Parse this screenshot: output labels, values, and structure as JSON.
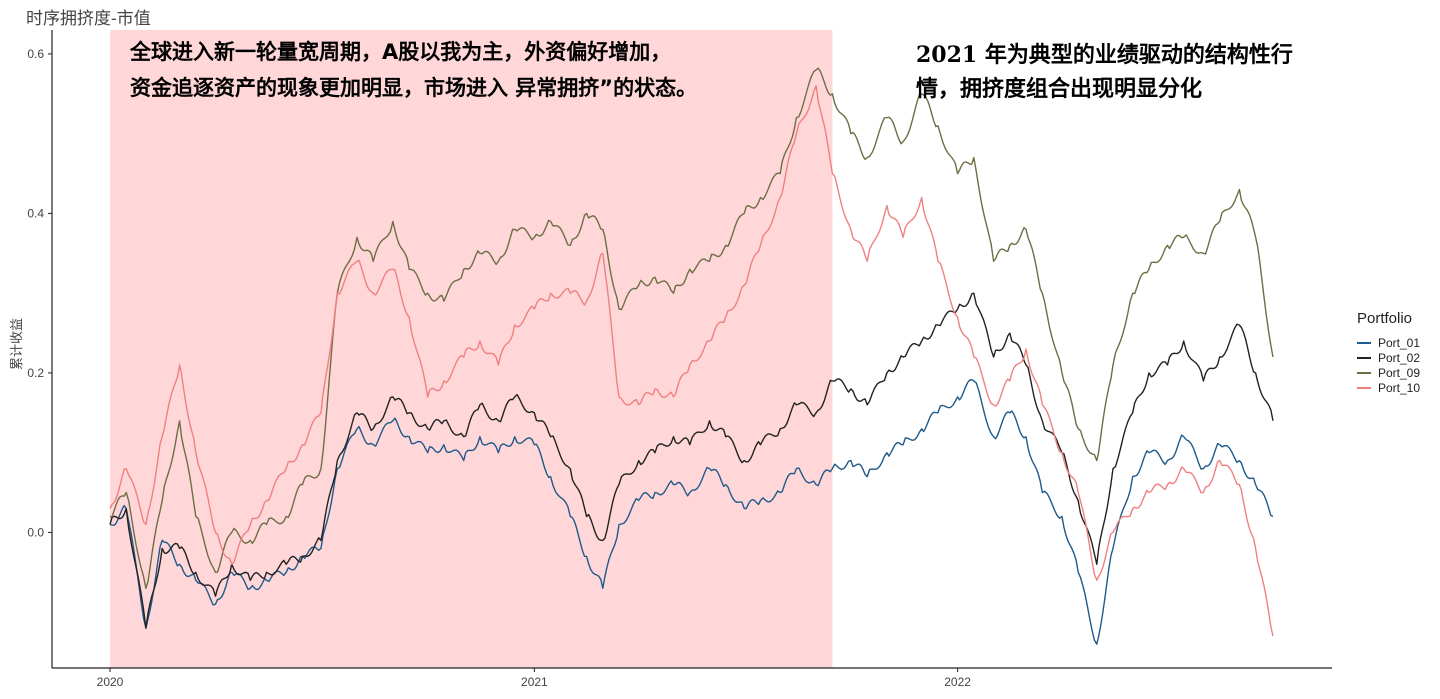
{
  "chart_data": {
    "type": "line",
    "title": "时序拥挤度-市值",
    "ylabel": "累计收益",
    "xlabel": "",
    "x_ticks": [
      "2020",
      "2021",
      "2022"
    ],
    "y_ticks": [
      "0.0",
      "0.2",
      "0.4",
      "0.6"
    ],
    "ylim": [
      -0.17,
      0.63
    ],
    "xlim": [
      "2020-01-01",
      "2022-09-30"
    ],
    "grid": false,
    "legend": {
      "title": "Portfolio",
      "placement": "right"
    },
    "shaded_region": {
      "start": "2020-01-01",
      "end": "2021-09-15",
      "color": "#ffd7d9"
    },
    "annotations": [
      {
        "lines": [
          "全球进入新一轮量宽周期，A股以我为主，外资偏好增加，",
          "资金追逐资产的现象更加明显，市场进入 异常拥挤”的状态。"
        ]
      },
      {
        "lines": [
          "2021 年为典型的业绩驱动的结构性行",
          "情，拥挤度组合出现明显分化"
        ]
      }
    ],
    "x": [
      "2020-01-01",
      "2020-01-15",
      "2020-02-01",
      "2020-02-15",
      "2020-03-01",
      "2020-03-15",
      "2020-04-01",
      "2020-04-15",
      "2020-05-01",
      "2020-05-15",
      "2020-06-01",
      "2020-06-15",
      "2020-07-01",
      "2020-07-15",
      "2020-08-01",
      "2020-08-15",
      "2020-09-01",
      "2020-09-15",
      "2020-10-01",
      "2020-10-15",
      "2020-11-01",
      "2020-11-15",
      "2020-12-01",
      "2020-12-15",
      "2021-01-01",
      "2021-01-15",
      "2021-02-01",
      "2021-02-15",
      "2021-03-01",
      "2021-03-15",
      "2021-04-01",
      "2021-04-15",
      "2021-05-01",
      "2021-05-15",
      "2021-06-01",
      "2021-06-15",
      "2021-07-01",
      "2021-07-15",
      "2021-08-01",
      "2021-08-15",
      "2021-09-01",
      "2021-09-15",
      "2021-10-01",
      "2021-10-15",
      "2021-11-01",
      "2021-11-15",
      "2021-12-01",
      "2021-12-15",
      "2022-01-01",
      "2022-01-15",
      "2022-02-01",
      "2022-02-15",
      "2022-03-01",
      "2022-03-15",
      "2022-04-01",
      "2022-04-15",
      "2022-05-01",
      "2022-05-15",
      "2022-06-01",
      "2022-06-15",
      "2022-07-01",
      "2022-07-15",
      "2022-08-01",
      "2022-08-15",
      "2022-09-01",
      "2022-09-15",
      "2022-09-30"
    ],
    "series": [
      {
        "name": "Port_01",
        "color": "#1f5a8a",
        "values": [
          0.01,
          0.03,
          -0.12,
          -0.01,
          -0.04,
          -0.06,
          -0.09,
          -0.05,
          -0.07,
          -0.06,
          -0.05,
          -0.03,
          -0.02,
          0.08,
          0.13,
          0.11,
          0.14,
          0.12,
          0.1,
          0.11,
          0.09,
          0.12,
          0.1,
          0.12,
          0.11,
          0.07,
          0.02,
          -0.03,
          -0.07,
          0.01,
          0.04,
          0.05,
          0.06,
          0.05,
          0.08,
          0.06,
          0.03,
          0.04,
          0.05,
          0.08,
          0.06,
          0.08,
          0.09,
          0.07,
          0.1,
          0.11,
          0.13,
          0.15,
          0.17,
          0.19,
          0.12,
          0.15,
          0.12,
          0.05,
          0.02,
          -0.05,
          -0.14,
          -0.02,
          0.07,
          0.1,
          0.09,
          0.12,
          0.08,
          0.11,
          0.09,
          0.06,
          0.02
        ]
      },
      {
        "name": "Port_02",
        "color": "#222222",
        "values": [
          0.01,
          0.03,
          -0.12,
          -0.02,
          -0.02,
          -0.05,
          -0.08,
          -0.04,
          -0.06,
          -0.05,
          -0.04,
          -0.03,
          -0.01,
          0.09,
          0.15,
          0.13,
          0.17,
          0.15,
          0.13,
          0.14,
          0.12,
          0.16,
          0.14,
          0.17,
          0.15,
          0.12,
          0.08,
          0.02,
          -0.01,
          0.06,
          0.09,
          0.1,
          0.12,
          0.11,
          0.14,
          0.12,
          0.09,
          0.11,
          0.13,
          0.16,
          0.15,
          0.19,
          0.18,
          0.16,
          0.2,
          0.22,
          0.24,
          0.26,
          0.28,
          0.3,
          0.22,
          0.25,
          0.21,
          0.14,
          0.1,
          0.04,
          -0.04,
          0.08,
          0.15,
          0.2,
          0.21,
          0.24,
          0.19,
          0.22,
          0.26,
          0.2,
          0.14
        ]
      },
      {
        "name": "Port_09",
        "color": "#6e6e44",
        "values": [
          0.02,
          0.05,
          -0.07,
          0.04,
          0.14,
          0.02,
          -0.05,
          0.0,
          -0.01,
          0.01,
          0.02,
          0.06,
          0.08,
          0.3,
          0.37,
          0.34,
          0.39,
          0.33,
          0.3,
          0.29,
          0.33,
          0.35,
          0.34,
          0.38,
          0.37,
          0.39,
          0.36,
          0.4,
          0.38,
          0.28,
          0.31,
          0.32,
          0.3,
          0.33,
          0.34,
          0.36,
          0.4,
          0.42,
          0.45,
          0.52,
          0.58,
          0.55,
          0.5,
          0.47,
          0.52,
          0.49,
          0.55,
          0.51,
          0.45,
          0.47,
          0.34,
          0.36,
          0.38,
          0.3,
          0.2,
          0.13,
          0.09,
          0.21,
          0.3,
          0.33,
          0.36,
          0.37,
          0.35,
          0.39,
          0.43,
          0.37,
          0.22
        ]
      },
      {
        "name": "Port_10",
        "color": "#f08080",
        "values": [
          0.03,
          0.08,
          0.01,
          0.12,
          0.21,
          0.1,
          0.0,
          -0.04,
          0.01,
          0.04,
          0.08,
          0.11,
          0.15,
          0.3,
          0.34,
          0.3,
          0.33,
          0.27,
          0.17,
          0.19,
          0.22,
          0.24,
          0.21,
          0.26,
          0.28,
          0.3,
          0.3,
          0.29,
          0.35,
          0.17,
          0.16,
          0.18,
          0.17,
          0.21,
          0.24,
          0.27,
          0.31,
          0.36,
          0.42,
          0.5,
          0.56,
          0.45,
          0.38,
          0.34,
          0.41,
          0.37,
          0.42,
          0.34,
          0.27,
          0.22,
          0.16,
          0.19,
          0.23,
          0.16,
          0.1,
          0.05,
          -0.06,
          0.0,
          0.03,
          0.05,
          0.06,
          0.08,
          0.05,
          0.09,
          0.06,
          -0.02,
          -0.13
        ]
      }
    ]
  }
}
